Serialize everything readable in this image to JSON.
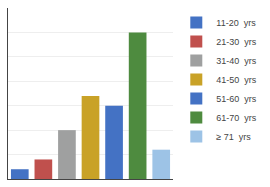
{
  "chart_data": {
    "type": "bar",
    "categories": [
      "11-20  yrs",
      "21-30  yrs",
      "31-40  yrs",
      "41-50  yrs",
      "51-60  yrs",
      "61-70  yrs",
      "≥ 71  yrs"
    ],
    "values": [
      2,
      4,
      10,
      17,
      15,
      30,
      6
    ],
    "colors": [
      "#4472c4",
      "#c0504d",
      "#9fa0a0",
      "#c9a227",
      "#4472c4",
      "#4e8b3f",
      "#9dc3e6"
    ],
    "ylim": [
      0,
      35
    ],
    "yticks": [
      5,
      10,
      15,
      20,
      25,
      30,
      35
    ],
    "grid": true,
    "legend": "upper right",
    "tick_labels": false
  }
}
